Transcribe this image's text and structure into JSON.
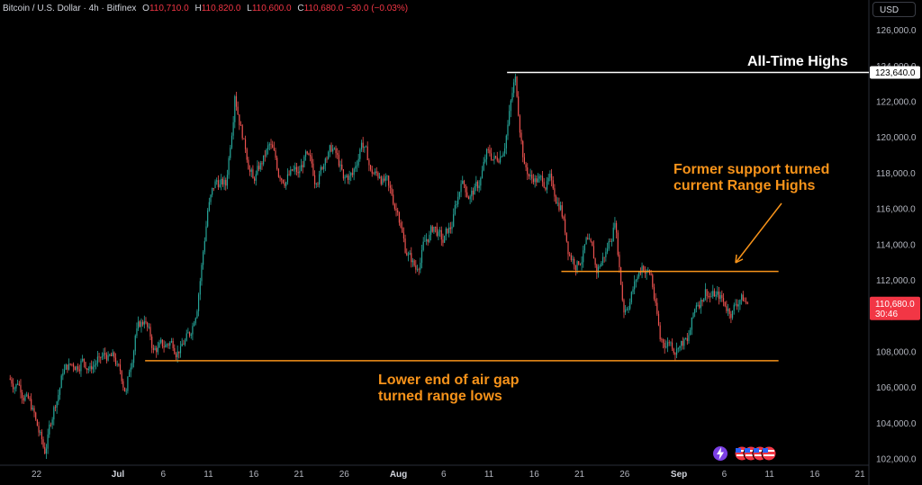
{
  "header": {
    "symbol": "Bitcoin / U.S. Dollar · 4h · Bitfinex",
    "open_label": "O",
    "open_value": "110,710.0",
    "high_label": "H",
    "high_value": "110,820.0",
    "low_label": "L",
    "low_value": "110,600.0",
    "close_label": "C",
    "close_value": "110,680.0",
    "change": "−30.0 (−0.03%)"
  },
  "currency_button": "USD",
  "colors": {
    "background": "#000000",
    "up": "#26a69a",
    "down": "#ef5350",
    "annotation_orange": "#f7931a",
    "ath_line": "#ffffff",
    "price_tag": "#f23645"
  },
  "chart_data": {
    "type": "candlestick",
    "timeframe": "4h",
    "y_axis": {
      "ticks": [
        "102,000.0",
        "104,000.0",
        "106,000.0",
        "108,000.0",
        "110,000.0",
        "112,000.0",
        "114,000.0",
        "116,000.0",
        "118,000.0",
        "120,000.0",
        "122,000.0",
        "124,000.0",
        "126,000.0"
      ],
      "range": [
        101800,
        126800
      ]
    },
    "x_axis": {
      "ticks": [
        "22",
        "Jul",
        "6",
        "11",
        "16",
        "21",
        "26",
        "Aug",
        "6",
        "11",
        "16",
        "21",
        "26",
        "Sep",
        "6",
        "11",
        "16",
        "21"
      ],
      "bold_ticks": [
        "Jul",
        "Aug",
        "Sep"
      ]
    },
    "close_series": {
      "x": [
        "Jun 19",
        "Jun 20",
        "Jun 21",
        "Jun 22",
        "Jun 23",
        "Jun 24",
        "Jun 25",
        "Jun 26",
        "Jun 27",
        "Jun 28",
        "Jun 29",
        "Jun 30",
        "Jul 1",
        "Jul 2",
        "Jul 3",
        "Jul 4",
        "Jul 5",
        "Jul 6",
        "Jul 7",
        "Jul 8",
        "Jul 9",
        "Jul 10",
        "Jul 11",
        "Jul 12",
        "Jul 13",
        "Jul 14",
        "Jul 15",
        "Jul 16",
        "Jul 17",
        "Jul 18",
        "Jul 19",
        "Jul 20",
        "Jul 21",
        "Jul 22",
        "Jul 23",
        "Jul 24",
        "Jul 25",
        "Jul 26",
        "Jul 27",
        "Jul 28",
        "Jul 29",
        "Jul 30",
        "Jul 31",
        "Aug 1",
        "Aug 2",
        "Aug 3",
        "Aug 4",
        "Aug 5",
        "Aug 6",
        "Aug 7",
        "Aug 8",
        "Aug 9",
        "Aug 10",
        "Aug 11",
        "Aug 12",
        "Aug 13",
        "Aug 14",
        "Aug 15",
        "Aug 16",
        "Aug 17",
        "Aug 18",
        "Aug 19",
        "Aug 20",
        "Aug 21",
        "Aug 22",
        "Aug 23",
        "Aug 24",
        "Aug 25",
        "Aug 26",
        "Aug 27",
        "Aug 28",
        "Aug 29",
        "Aug 30",
        "Aug 31",
        "Sep 1",
        "Sep 2",
        "Sep 3",
        "Sep 4",
        "Sep 5",
        "Sep 6",
        "Sep 7",
        "Sep 8"
      ],
      "close": [
        106200,
        105600,
        104200,
        102300,
        104900,
        106800,
        107300,
        107500,
        107200,
        107700,
        107800,
        107300,
        105800,
        108900,
        109700,
        108100,
        108300,
        108600,
        108300,
        108900,
        111200,
        115900,
        117600,
        117300,
        122300,
        119900,
        117700,
        118500,
        119600,
        117700,
        117900,
        118000,
        119100,
        117400,
        118800,
        119400,
        117700,
        117900,
        119700,
        118200,
        117800,
        117300,
        115800,
        113400,
        112600,
        114200,
        115000,
        114100,
        115000,
        117400,
        116700,
        117300,
        119300,
        118700,
        120100,
        123400,
        118500,
        117500,
        117500,
        117600,
        116200,
        113400,
        112900,
        114300,
        112400,
        113600,
        115200,
        110200,
        111500,
        112800,
        112300,
        108700,
        108500,
        108200,
        108600,
        110600,
        111500,
        111100,
        110800,
        110300,
        111200,
        110680
      ]
    },
    "current_price": "110,680.0",
    "countdown": "30:46",
    "ath_price": "123,640.0",
    "levels": [
      {
        "name": "All-Time Highs",
        "price": 123640
      },
      {
        "name": "range_high",
        "price": 112500
      },
      {
        "name": "range_low",
        "price": 107500
      }
    ],
    "annotations": {
      "ath": "All-Time Highs",
      "range_high_line1": "Former support turned",
      "range_high_line2": "current Range Highs",
      "range_low_line1": "Lower end of air gap",
      "range_low_line2": "turned range lows"
    }
  }
}
